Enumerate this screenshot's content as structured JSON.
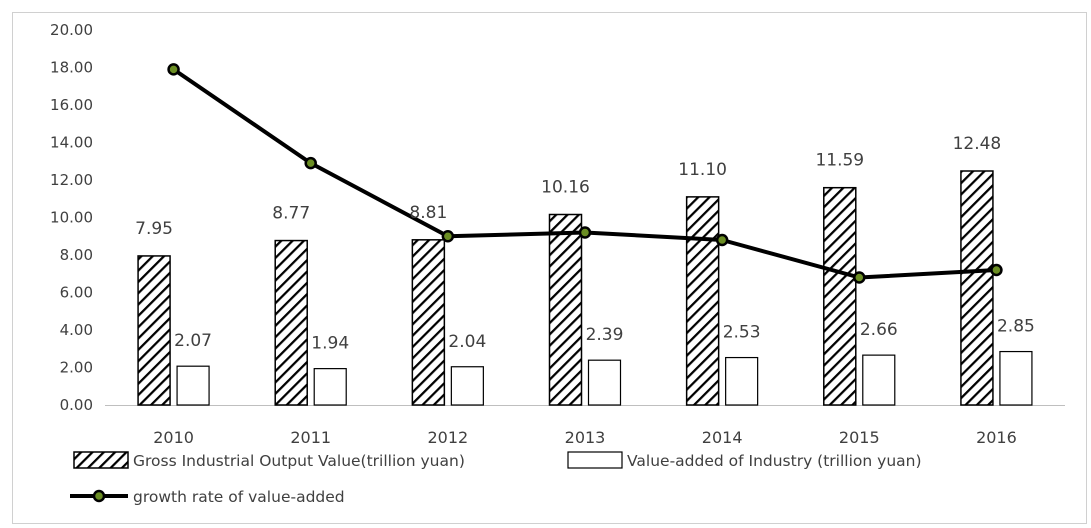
{
  "chart_data": {
    "type": "bar",
    "categories": [
      "2010",
      "2011",
      "2012",
      "2013",
      "2014",
      "2015",
      "2016"
    ],
    "ylim": [
      0,
      20
    ],
    "yticks": [
      "0.00",
      "2.00",
      "4.00",
      "6.00",
      "8.00",
      "10.00",
      "12.00",
      "14.00",
      "16.00",
      "18.00",
      "20.00"
    ],
    "grid": false,
    "legend_position": "bottom",
    "series": [
      {
        "name": "Gross Industrial Output Value(trillion yuan)",
        "kind": "bar",
        "pattern": "hatched",
        "values": [
          7.95,
          8.77,
          8.81,
          10.16,
          11.1,
          11.59,
          12.48
        ],
        "labels": [
          "7.95",
          "8.77",
          "8.81",
          "10.16",
          "11.10",
          "11.59",
          "12.48"
        ]
      },
      {
        "name": "Value-added of Industry (trillion yuan)",
        "kind": "bar",
        "pattern": "white",
        "values": [
          2.07,
          1.94,
          2.04,
          2.39,
          2.53,
          2.66,
          2.85
        ],
        "labels": [
          "2.07",
          "1.94",
          "2.04",
          "2.39",
          "2.53",
          "2.66",
          "2.85"
        ]
      },
      {
        "name": "growth rate of value-added",
        "kind": "line",
        "values": [
          17.9,
          12.9,
          9.0,
          9.2,
          8.8,
          6.8,
          7.2
        ]
      }
    ],
    "colors": {
      "bar_outline": "#000000",
      "line": "#000000",
      "marker_fill": "#6b8e23"
    }
  }
}
